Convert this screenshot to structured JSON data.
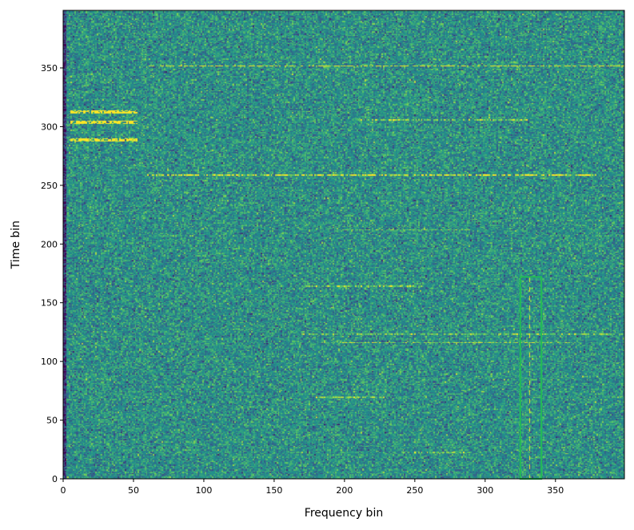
{
  "chart_data": {
    "type": "heatmap",
    "title": "",
    "xlabel": "Frequency bin",
    "ylabel": "Time bin",
    "xlim": [
      0,
      399
    ],
    "ylim": [
      0,
      399
    ],
    "x_ticks": [
      0,
      50,
      100,
      150,
      200,
      250,
      300,
      350
    ],
    "y_ticks": [
      0,
      50,
      100,
      150,
      200,
      250,
      300,
      350
    ],
    "colormap": "viridis",
    "colors": {
      "background_low": "#3b528b",
      "background_mid": "#21918c",
      "background_high": "#5ec962",
      "signal": "#fde725",
      "edge_dark": "#440154",
      "box": "#22bb55"
    },
    "horizontal_signals": [
      {
        "t": 352,
        "f0": 60,
        "f1": 399,
        "strength": 0.55
      },
      {
        "t": 259,
        "f0": 60,
        "f1": 380,
        "strength": 0.45
      },
      {
        "t": 306,
        "f0": 210,
        "f1": 330,
        "strength": 0.35
      },
      {
        "t": 212,
        "f0": 200,
        "f1": 290,
        "strength": 0.3
      },
      {
        "t": 164,
        "f0": 170,
        "f1": 255,
        "strength": 0.3
      },
      {
        "t": 123,
        "f0": 170,
        "f1": 399,
        "strength": 0.25
      },
      {
        "t": 116,
        "f0": 180,
        "f1": 360,
        "strength": 0.35
      },
      {
        "t": 69,
        "f0": 180,
        "f1": 230,
        "strength": 0.35
      },
      {
        "t": 22,
        "f0": 240,
        "f1": 290,
        "strength": 0.3
      }
    ],
    "burst_block": {
      "f0": 5,
      "f1": 52,
      "rows": [
        {
          "t": 313,
          "strength": 0.8
        },
        {
          "t": 304,
          "strength": 0.75
        },
        {
          "t": 289,
          "strength": 0.55
        }
      ]
    },
    "vertical_signal": {
      "f": 332,
      "t0": 0,
      "t1": 172,
      "strength": 0.6
    },
    "annotation_box": {
      "f0": 325,
      "f1": 340,
      "t0": 0,
      "t1": 172
    }
  }
}
